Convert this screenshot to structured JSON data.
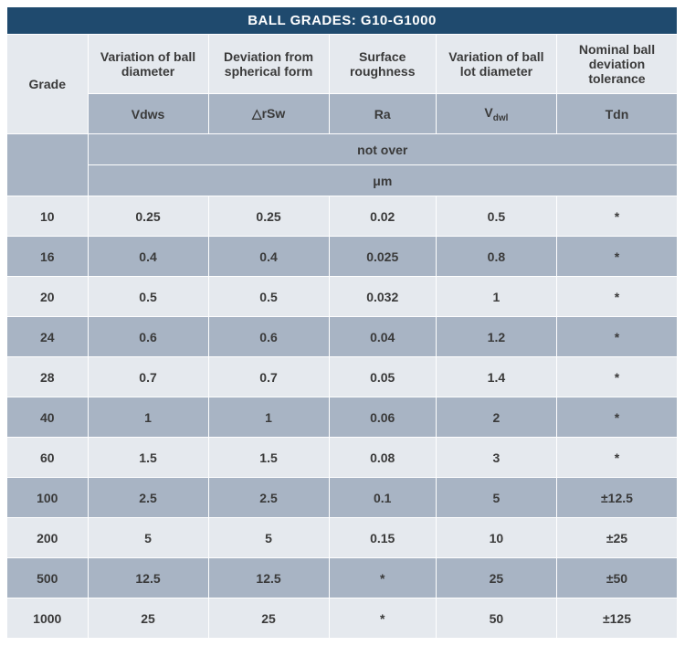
{
  "title": "BALL GRADES: G10-G1000",
  "columns": {
    "c0_long": "Grade",
    "c1_long": "Variation of ball diameter",
    "c2_long": "Deviation from spherical form",
    "c3_long": "Surface roughness",
    "c4_long": "Variation of ball lot diameter",
    "c5_long": "Nominal ball deviation tolerance",
    "c1_sym": "Vdws",
    "c2_sym_pre": "△rSw",
    "c3_sym": "Ra",
    "c4_sym_pre": "V",
    "c4_sym_sub": "dwl",
    "c5_sym": "Tdn",
    "merged_note": "not over",
    "unit": "μm"
  },
  "rows": [
    {
      "g": "10",
      "v1": "0.25",
      "v2": "0.25",
      "v3": "0.02",
      "v4": "0.5",
      "v5": "*"
    },
    {
      "g": "16",
      "v1": "0.4",
      "v2": "0.4",
      "v3": "0.025",
      "v4": "0.8",
      "v5": "*"
    },
    {
      "g": "20",
      "v1": "0.5",
      "v2": "0.5",
      "v3": "0.032",
      "v4": "1",
      "v5": "*"
    },
    {
      "g": "24",
      "v1": "0.6",
      "v2": "0.6",
      "v3": "0.04",
      "v4": "1.2",
      "v5": "*"
    },
    {
      "g": "28",
      "v1": "0.7",
      "v2": "0.7",
      "v3": "0.05",
      "v4": "1.4",
      "v5": "*"
    },
    {
      "g": "40",
      "v1": "1",
      "v2": "1",
      "v3": "0.06",
      "v4": "2",
      "v5": "*"
    },
    {
      "g": "60",
      "v1": "1.5",
      "v2": "1.5",
      "v3": "0.08",
      "v4": "3",
      "v5": "*"
    },
    {
      "g": "100",
      "v1": "2.5",
      "v2": "2.5",
      "v3": "0.1",
      "v4": "5",
      "v5": "±12.5"
    },
    {
      "g": "200",
      "v1": "5",
      "v2": "5",
      "v3": "0.15",
      "v4": "10",
      "v5": "±25"
    },
    {
      "g": "500",
      "v1": "12.5",
      "v2": "12.5",
      "v3": "*",
      "v4": "25",
      "v5": "±50"
    },
    {
      "g": "1000",
      "v1": "25",
      "v2": "25",
      "v3": "*",
      "v4": "50",
      "v5": "±125"
    }
  ],
  "style": {
    "title_bg": "#1f4a6e",
    "light_bg": "#e5e9ee",
    "dark_bg": "#a8b4c4",
    "text_color": "#3a3a3a",
    "title_text": "#ffffff",
    "font_family": "Arial",
    "col_widths_pct": [
      12,
      18,
      18,
      16,
      18,
      18
    ]
  }
}
